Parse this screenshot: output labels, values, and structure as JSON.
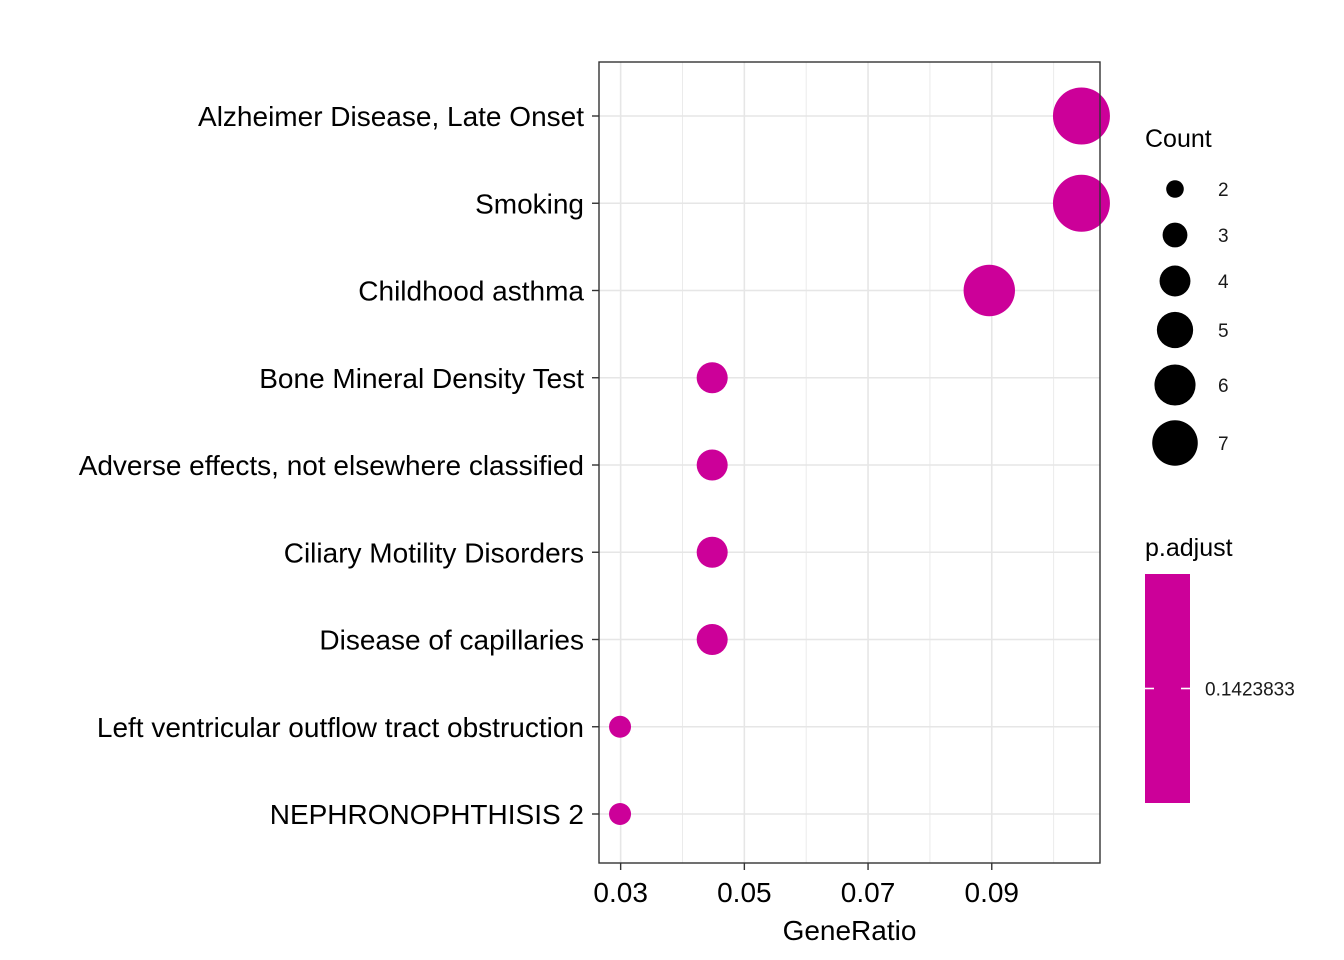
{
  "chart_data": {
    "type": "scatter",
    "title": "",
    "xlabel": "GeneRatio",
    "ylabel": "",
    "xlim": [
      0.0265,
      0.1075
    ],
    "x_ticks": [
      0.03,
      0.05,
      0.07,
      0.09
    ],
    "x_tick_labels": [
      "0.03",
      "0.05",
      "0.07",
      "0.09"
    ],
    "grid": true,
    "categories": [
      "Alzheimer Disease, Late Onset",
      "Smoking",
      "Childhood asthma",
      "Bone Mineral Density Test",
      "Adverse effects, not elsewhere classified",
      "Ciliary Motility Disorders",
      "Disease of capillaries",
      "Left ventricular outflow tract obstruction",
      "NEPHRONOPHTHISIS 2"
    ],
    "points": [
      {
        "term": "Alzheimer Disease, Late Onset",
        "gene_ratio": 0.1045,
        "count": 7,
        "p_adjust": 0.1423833
      },
      {
        "term": "Smoking",
        "gene_ratio": 0.1045,
        "count": 7,
        "p_adjust": 0.1423833
      },
      {
        "term": "Childhood asthma",
        "gene_ratio": 0.0896,
        "count": 6,
        "p_adjust": 0.1423833
      },
      {
        "term": "Bone Mineral Density Test",
        "gene_ratio": 0.0448,
        "count": 3,
        "p_adjust": 0.1423833
      },
      {
        "term": "Adverse effects, not elsewhere classified",
        "gene_ratio": 0.0448,
        "count": 3,
        "p_adjust": 0.1423833
      },
      {
        "term": "Ciliary Motility Disorders",
        "gene_ratio": 0.0448,
        "count": 3,
        "p_adjust": 0.1423833
      },
      {
        "term": "Disease of capillaries",
        "gene_ratio": 0.0448,
        "count": 3,
        "p_adjust": 0.1423833
      },
      {
        "term": "Left ventricular outflow tract obstruction",
        "gene_ratio": 0.0299,
        "count": 2,
        "p_adjust": 0.1423833
      },
      {
        "term": "NEPHRONOPHTHISIS 2",
        "gene_ratio": 0.0299,
        "count": 2,
        "p_adjust": 0.1423833
      }
    ],
    "point_color": "#CC0099",
    "legend": {
      "position": "right",
      "size_title": "Count",
      "size_values": [
        2,
        3,
        4,
        5,
        6,
        7
      ],
      "color_title": "p.adjust",
      "color_values": [
        "0.1423833"
      ],
      "color_value_numeric": 0.1423833
    }
  }
}
